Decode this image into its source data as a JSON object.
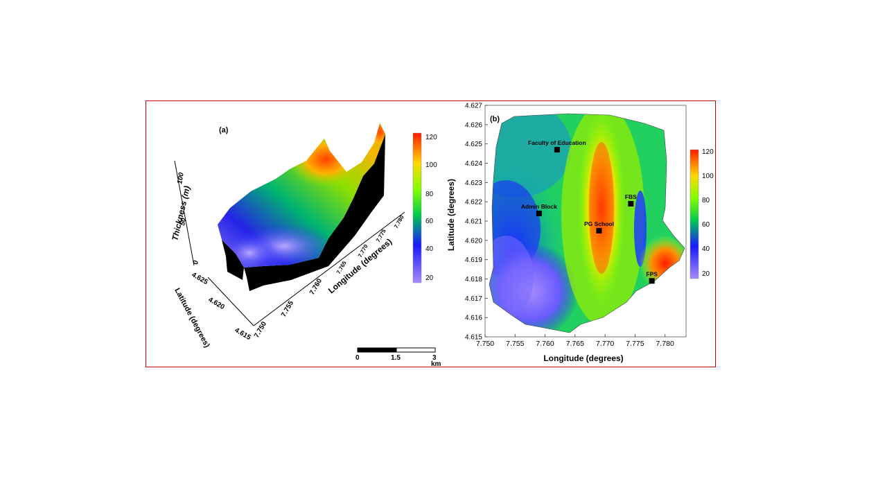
{
  "panel_a": {
    "label": "(a)",
    "z_axis_label": "Thickness (m)",
    "z_ticks": [
      "0",
      "50",
      "100"
    ],
    "lat_axis_label": "Latitude (degrees)",
    "lat_ticks": [
      "4.615",
      "4.620",
      "4.625"
    ],
    "lon_axis_label": "Longitude (degrees)",
    "lon_ticks": [
      "7.750",
      "7.755",
      "7.760",
      "7.765",
      "7.770",
      "7.775",
      "7.780"
    ],
    "colorbar_ticks": [
      "20",
      "40",
      "60",
      "80",
      "100",
      "120"
    ]
  },
  "scale_bar": {
    "ticks": [
      "0",
      "1.5",
      "3"
    ],
    "unit": "km"
  },
  "panel_b": {
    "label": "(b)",
    "xlabel": "Longitude (degrees)",
    "ylabel": "Latitude (degrees)",
    "x_ticks": [
      "7.750",
      "7.755",
      "7.760",
      "7.765",
      "7.770",
      "7.775",
      "7.780"
    ],
    "y_ticks": [
      "4.615",
      "4.616",
      "4.617",
      "4.618",
      "4.619",
      "4.620",
      "4.621",
      "4.622",
      "4.623",
      "4.624",
      "4.625",
      "4.626",
      "4.627"
    ],
    "colorbar_ticks": [
      "20",
      "40",
      "60",
      "80",
      "100",
      "120"
    ],
    "xlim": [
      7.75,
      7.7835
    ],
    "ylim": [
      4.615,
      4.627
    ],
    "locations": [
      {
        "name": "Faculty of Education",
        "lon": 7.762,
        "lat": 4.6247
      },
      {
        "name": "Admin Block",
        "lon": 7.759,
        "lat": 4.6214
      },
      {
        "name": "FBS",
        "lon": 7.7743,
        "lat": 4.6219
      },
      {
        "name": "PG School",
        "lon": 7.769,
        "lat": 4.6205
      },
      {
        "name": "FPS",
        "lon": 7.7778,
        "lat": 4.6179
      }
    ]
  },
  "colors": {
    "frame": "#c00000",
    "colormap": [
      "#a78bfa",
      "#1a1aff",
      "#00c850",
      "#7fff00",
      "#ffd700",
      "#ff1a00"
    ]
  }
}
